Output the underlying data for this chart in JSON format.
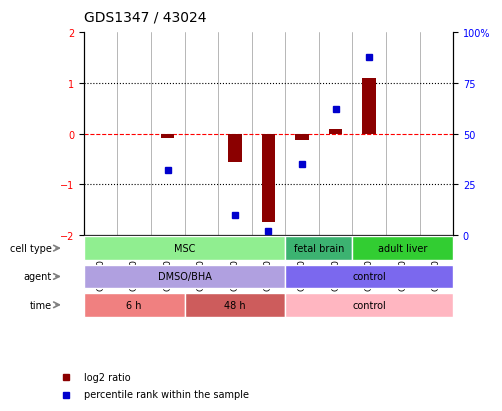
{
  "title": "GDS1347 / 43024",
  "samples": [
    "GSM60436",
    "GSM60437",
    "GSM60438",
    "GSM60440",
    "GSM60442",
    "GSM60444",
    "GSM60433",
    "GSM60434",
    "GSM60448",
    "GSM60450",
    "GSM60451"
  ],
  "log2_ratio": [
    0.0,
    0.0,
    -0.08,
    0.0,
    -0.55,
    -1.75,
    -0.12,
    0.1,
    1.1,
    0.0,
    0.0
  ],
  "percentile": [
    null,
    null,
    32,
    null,
    10,
    2,
    35,
    62,
    88,
    null,
    null
  ],
  "ylim_left": [
    -2,
    2
  ],
  "ylim_right": [
    0,
    100
  ],
  "yticks_left": [
    -2,
    -1,
    0,
    1,
    2
  ],
  "yticks_right": [
    0,
    25,
    50,
    75,
    100
  ],
  "yticklabels_right": [
    "0",
    "25",
    "50",
    "75",
    "100%"
  ],
  "hline_red": 0,
  "hlines_dotted": [
    -1,
    1
  ],
  "bar_color": "#8B0000",
  "dot_color": "#0000CD",
  "cell_type_groups": [
    {
      "label": "MSC",
      "start": 0,
      "end": 6,
      "color": "#90EE90"
    },
    {
      "label": "fetal brain",
      "start": 6,
      "end": 8,
      "color": "#3CB371"
    },
    {
      "label": "adult liver",
      "start": 8,
      "end": 11,
      "color": "#32CD32"
    }
  ],
  "agent_groups": [
    {
      "label": "DMSO/BHA",
      "start": 0,
      "end": 6,
      "color": "#B0A0E0"
    },
    {
      "label": "control",
      "start": 6,
      "end": 11,
      "color": "#7B68EE"
    }
  ],
  "time_groups": [
    {
      "label": "6 h",
      "start": 0,
      "end": 3,
      "color": "#F08080"
    },
    {
      "label": "48 h",
      "start": 3,
      "end": 6,
      "color": "#CD5C5C"
    },
    {
      "label": "control",
      "start": 6,
      "end": 11,
      "color": "#FFB6C1"
    }
  ],
  "row_labels": [
    "cell type",
    "agent",
    "time"
  ],
  "legend_items": [
    {
      "label": "log2 ratio",
      "color": "#8B0000"
    },
    {
      "label": "percentile rank within the sample",
      "color": "#0000CD"
    }
  ]
}
